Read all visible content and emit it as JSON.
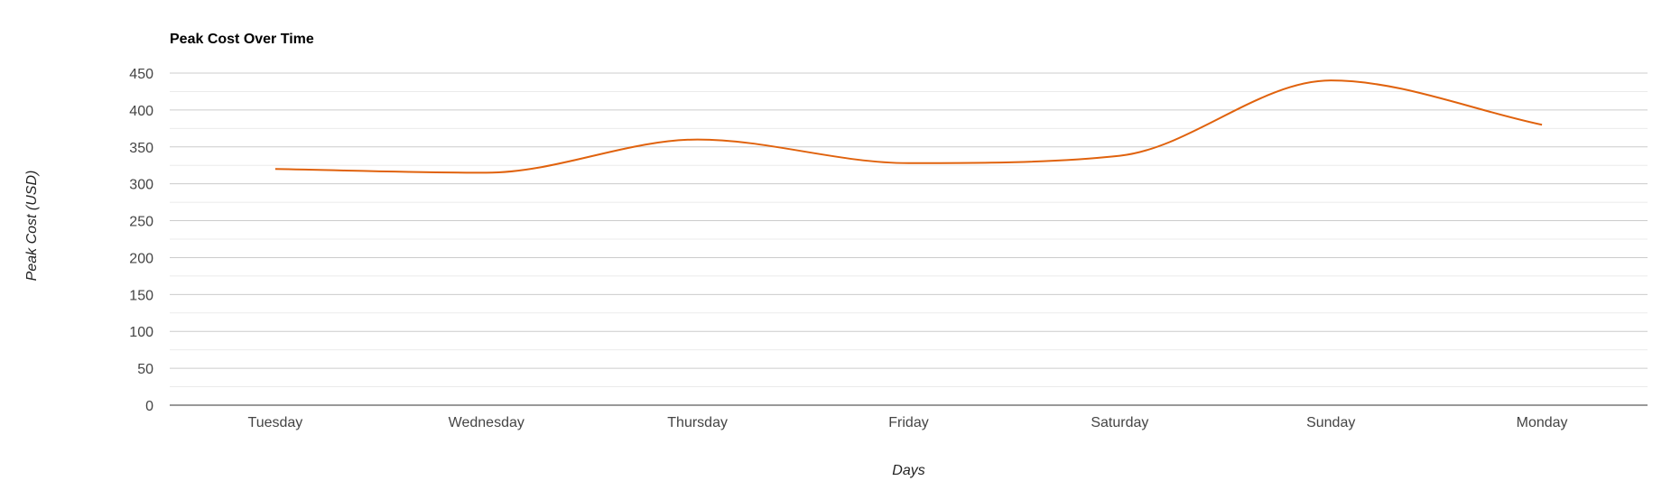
{
  "chart_data": {
    "type": "line",
    "title": "Peak Cost Over Time",
    "xlabel": "Days",
    "ylabel": "Peak Cost (USD)",
    "categories": [
      "Tuesday",
      "Wednesday",
      "Thursday",
      "Friday",
      "Saturday",
      "Sunday",
      "Monday"
    ],
    "series": [
      {
        "values": [
          320,
          315,
          360,
          328,
          338,
          440,
          380
        ],
        "color": "#e0620d"
      }
    ],
    "ylim": [
      0,
      450
    ],
    "yticks": [
      "0",
      "50",
      "100",
      "150",
      "200",
      "250",
      "300",
      "350",
      "400",
      "450"
    ],
    "grid": true,
    "legend": "none"
  }
}
